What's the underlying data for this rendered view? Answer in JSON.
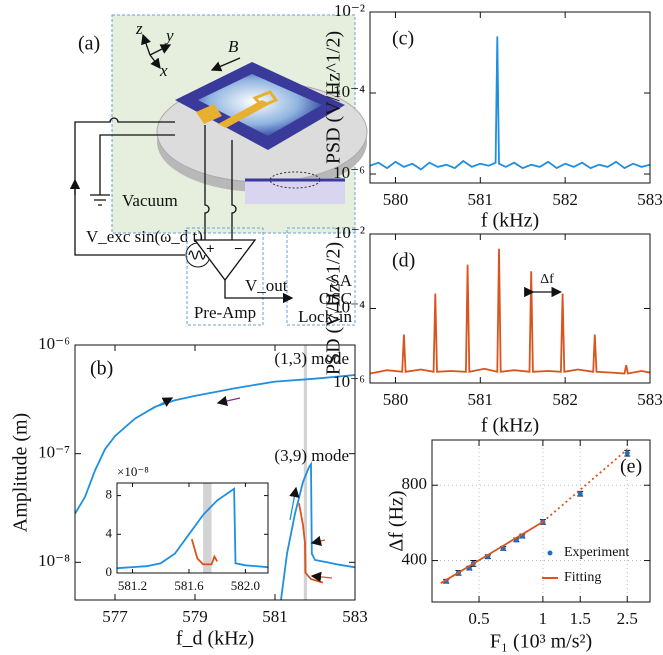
{
  "diagram": {
    "label": "(a)",
    "axis_labels": [
      "z",
      "y",
      "x"
    ],
    "field": "B",
    "chamber": "Vacuum",
    "drive": "V_exc sin(ω_d t)",
    "output": "V_out",
    "amplifier": "Pre-Amp",
    "amplifier_inputs": [
      "+",
      "−"
    ],
    "instruments": [
      "SA",
      "OSC",
      "Lock-in"
    ]
  },
  "chart_data": [
    {
      "type": "line",
      "label": "(b)",
      "xlabel": "f_d (kHz)",
      "ylabel": "Amplitude (m)",
      "yscale": "log",
      "xlim": [
        576,
        583
      ],
      "xticks": [
        577,
        579,
        581,
        583
      ],
      "ylim": [
        4.5e-09,
        1e-06
      ],
      "yticks": [
        {
          "value": 1e-08,
          "label": "10⁻⁸"
        },
        {
          "value": 1e-07,
          "label": "10⁻⁷"
        },
        {
          "value": 1e-06,
          "label": "10⁻⁶"
        }
      ],
      "annotations": [
        "(1,3) mode",
        "(3,9) mode"
      ],
      "band": [
        581.72,
        581.8
      ],
      "series": [
        {
          "color": "#1f8fe0",
          "x": [
            576,
            576.25,
            576.5,
            576.75,
            577,
            577.5,
            578,
            578.5,
            579,
            580,
            581,
            582,
            583
          ],
          "values": [
            2.8e-08,
            4e-08,
            7e-08,
            1.1e-07,
            1.45e-07,
            2.1e-07,
            2.7e-07,
            3.1e-07,
            3.4e-07,
            4e-07,
            4.6e-07,
            4.9e-07,
            5.3e-07
          ]
        },
        {
          "color": "#d9541e",
          "x": [
            581.6,
            581.7,
            581.75,
            581.76,
            581.9,
            582.2
          ],
          "values": [
            3.5e-08,
            2.2e-08,
            1.5e-08,
            8e-09,
            7e-09,
            6.5e-09
          ]
        },
        {
          "color": "#1f8fe0",
          "x": [
            581.15,
            581.3,
            581.5,
            581.7,
            581.85,
            581.9,
            581.92,
            582.0,
            582.3,
            582.6,
            583
          ],
          "values": [
            4.5e-09,
            1.2e-08,
            2.8e-08,
            5.5e-08,
            7.5e-08,
            8e-08,
            1.2e-08,
            1.05e-08,
            1e-08,
            9.5e-09,
            9e-09
          ]
        }
      ]
    },
    {
      "type": "line",
      "multiplier": "×10⁻⁸",
      "xlim": [
        581.09,
        582.16
      ],
      "xticks": [
        581.2,
        581.6,
        {
          "value": 582,
          "label": "582.0"
        }
      ],
      "ylim": [
        0,
        9.3
      ],
      "yticks": [
        0,
        4,
        8
      ],
      "band": [
        581.7,
        581.76
      ],
      "series": [
        {
          "color": "#1f8fe0",
          "x": [
            581.09,
            581.3,
            581.4,
            581.5,
            581.55,
            581.6,
            581.7,
            581.8,
            581.9,
            581.92,
            581.93,
            582.0,
            582.16
          ],
          "values": [
            0.5,
            0.7,
            1.0,
            2.0,
            3.0,
            4.0,
            6.0,
            7.5,
            8.5,
            8.7,
            1.0,
            0.8,
            0.6
          ]
        },
        {
          "color": "#d9541e",
          "x": [
            581.62,
            581.66,
            581.7,
            581.76,
            581.78,
            581.8
          ],
          "values": [
            3.5,
            1.5,
            0.9,
            0.9,
            1.7,
            1.2
          ]
        }
      ]
    },
    {
      "type": "line",
      "label": "(c)",
      "xlabel": "f (kHz)",
      "ylabel": "PSD (V/Hz^1/2)",
      "yscale": "log",
      "xlim": [
        579.7,
        583
      ],
      "xticks": [
        580,
        581,
        582,
        583
      ],
      "ylim": [
        6e-07,
        0.01
      ],
      "yticks": [
        {
          "value": 1e-06,
          "label": "10⁻⁶"
        },
        {
          "value": 0.0001,
          "label": "10⁻⁴"
        },
        {
          "value": 0.01,
          "label": "10⁻²"
        }
      ],
      "series": [
        {
          "color": "#1f8fe0",
          "x": [
            579.7,
            579.8,
            579.9,
            580.0,
            580.1,
            580.2,
            580.3,
            580.4,
            580.5,
            580.6,
            580.7,
            580.8,
            580.9,
            581.0,
            581.1,
            581.18,
            581.2,
            581.22,
            581.3,
            581.4,
            581.5,
            581.6,
            581.7,
            581.8,
            581.9,
            582.0,
            582.1,
            582.2,
            582.3,
            582.4,
            582.5,
            582.6,
            582.7,
            582.8,
            582.9,
            583.0
          ],
          "values": [
            1.6e-06,
            1.9e-06,
            1.4e-06,
            2e-06,
            1.5e-06,
            1.8e-06,
            1.3e-06,
            1.9e-06,
            1.5e-06,
            1.7e-06,
            1.4e-06,
            2.1e-06,
            1.5e-06,
            1.8e-06,
            1.6e-06,
            1.9e-06,
            0.0025,
            1.8e-06,
            1.5e-06,
            1.9e-06,
            1.4e-06,
            1.7e-06,
            1.5e-06,
            2e-06,
            1.4e-06,
            1.8e-06,
            1.5e-06,
            1.9e-06,
            1.4e-06,
            1.7e-06,
            1.5e-06,
            2e-06,
            1.4e-06,
            1.8e-06,
            1.5e-06,
            1.7e-06
          ]
        }
      ]
    },
    {
      "type": "line",
      "label": "(d)",
      "xlabel": "f (kHz)",
      "ylabel": "PSD (V/Hz^1/2)",
      "yscale": "log",
      "xlim": [
        579.7,
        583
      ],
      "xticks": [
        580,
        581,
        582,
        583
      ],
      "ylim": [
        1e-06,
        0.01
      ],
      "yticks": [
        {
          "value": 1e-06,
          "label": "10⁻⁶"
        },
        {
          "value": 0.0001,
          "label": "10⁻⁴"
        },
        {
          "value": 0.01,
          "label": "10⁻²"
        }
      ],
      "annotations": [
        "Δf"
      ],
      "series": [
        {
          "color": "#d9541e",
          "x": [
            579.7,
            579.9,
            580.08,
            580.1,
            580.12,
            580.3,
            580.45,
            580.47,
            580.49,
            580.65,
            580.83,
            580.85,
            580.87,
            581.05,
            581.2,
            581.22,
            581.24,
            581.4,
            581.58,
            581.6,
            581.62,
            581.8,
            581.95,
            581.97,
            581.99,
            582.15,
            582.33,
            582.35,
            582.37,
            582.55,
            582.7,
            582.72,
            582.74,
            582.9,
            583.0
          ],
          "values": [
            1.8e-06,
            2.2e-06,
            2e-06,
            2e-05,
            2e-06,
            2.3e-06,
            2e-06,
            0.00025,
            2e-06,
            2.1e-06,
            2e-06,
            0.0015,
            2e-06,
            2.4e-06,
            2e-06,
            0.004,
            2e-06,
            2.2e-06,
            2e-06,
            0.001,
            2e-06,
            2.1e-06,
            2e-06,
            0.00025,
            2e-06,
            2.3e-06,
            2e-06,
            2e-05,
            2e-06,
            1.9e-06,
            1.8e-06,
            3e-06,
            1.8e-06,
            2.1e-06,
            1.9e-06
          ]
        }
      ]
    },
    {
      "type": "scatter",
      "label": "(e)",
      "xlabel": "F₁ (10³ m/s²)",
      "ylabel": "Δf (Hz)",
      "xscale": "log",
      "grid": true,
      "legend": "lower right",
      "xlim": [
        0.3,
        3.2
      ],
      "xticks": [
        0.5,
        1,
        1.5,
        2.5
      ],
      "ylim": [
        180,
        1040
      ],
      "yticks": [
        400,
        800
      ],
      "series": [
        {
          "name": "Experiment",
          "color": "#1f6fc4",
          "x": [
            0.35,
            0.4,
            0.45,
            0.47,
            0.55,
            0.65,
            0.75,
            0.8,
            1.0,
            1.5,
            2.5
          ],
          "values": [
            290,
            335,
            360,
            385,
            420,
            465,
            510,
            530,
            605,
            755,
            970
          ],
          "errors": [
            10,
            12,
            10,
            15,
            10,
            10,
            10,
            10,
            12,
            12,
            15
          ]
        },
        {
          "name": "Fitting",
          "color": "#d9541e",
          "x": [
            0.33,
            1.0,
            2.5
          ],
          "values": [
            280,
            605,
            990
          ],
          "dashed_beyond": 1.0
        }
      ]
    }
  ]
}
